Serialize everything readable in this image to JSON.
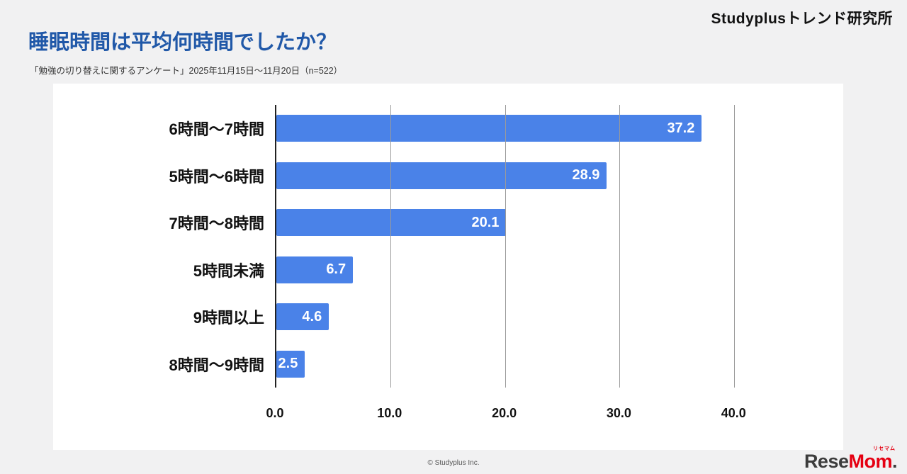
{
  "brand": "Studyplusトレンド研究所",
  "title": "睡眠時間は平均何時間でしたか？",
  "subtitle": "「勉強の切り替えに関するアンケート」2025年11月15日〜11月20日（n=522）",
  "footer": "© Studyplus Inc.",
  "logo": {
    "part1": "Rese",
    "part2": "Mom",
    "dot": ".",
    "ruby": "リセマム"
  },
  "colors": {
    "bar": "#4a82e8",
    "title": "#2058a8",
    "background": "#f1f1f2",
    "value_label": "#ffffff"
  },
  "chart_data": {
    "type": "bar",
    "orientation": "horizontal",
    "title": "睡眠時間は平均何時間でしたか？",
    "categories": [
      "6時間〜7時間",
      "5時間〜6時間",
      "7時間〜8時間",
      "5時間未満",
      "9時間以上",
      "8時間〜9時間"
    ],
    "values": [
      37.2,
      28.9,
      20.1,
      6.7,
      4.6,
      2.5
    ],
    "value_labels": [
      "37.2",
      "28.9",
      "20.1",
      "6.7",
      "4.6",
      "2.5"
    ],
    "x_ticks": [
      "0.0",
      "10.0",
      "20.0",
      "30.0",
      "40.0"
    ],
    "x_tick_values": [
      0,
      10,
      20,
      30,
      40
    ],
    "xlim": [
      0,
      47.4
    ],
    "grid": true,
    "legend": "none",
    "unit": "%",
    "n": 522
  }
}
